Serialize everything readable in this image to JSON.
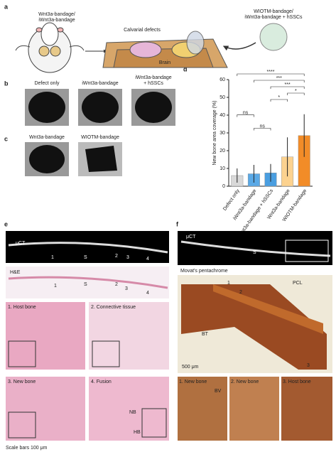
{
  "panels": {
    "a": "a",
    "b": "b",
    "c": "c",
    "d": "d",
    "e": "e",
    "f": "f"
  },
  "panel_a": {
    "mouse_label_1": "Wnt3a-bandage/",
    "mouse_label_2": "iWnt3a-bandage",
    "defects": "Calvarial defects",
    "brain": "Brain",
    "implant_label_1": "WIOTM-bandage/",
    "implant_label_2": "iWnt3a-bandage + hSSCs"
  },
  "panel_b": {
    "labels": [
      "Defect only",
      "iWnt3a-bandage",
      "iWnt3a-bandage",
      "+ hSSCs"
    ]
  },
  "panel_c": {
    "labels": [
      "Wnt3a-bandage",
      "WIOTM-bandage"
    ]
  },
  "panel_d": {
    "chart_data": {
      "type": "bar",
      "ylabel": "New bone area coverage (%)",
      "categories": [
        "Defect only",
        "iWnt3a-bandage",
        "iWnt3a-bandage + hSSCs",
        "Wnt3a-bandage",
        "WIOTM-bandage"
      ],
      "values": [
        6,
        7,
        7.5,
        16.5,
        28.5
      ],
      "errors": [
        4,
        5,
        5,
        11,
        12
      ],
      "colors": [
        "#d9d9d9",
        "#5aa9e6",
        "#4a9ee0",
        "#fcd28f",
        "#f28c28"
      ],
      "ylim": [
        0,
        60
      ],
      "yticks": [
        0,
        10,
        20,
        30,
        40,
        50,
        60
      ],
      "significance": [
        "****",
        "***",
        "***",
        "*",
        "*",
        "ns",
        "ns"
      ]
    }
  },
  "panel_e": {
    "uct": "μCT",
    "he": "H&E",
    "markers": [
      "1",
      "S",
      "2",
      "3",
      "4"
    ],
    "he_markers": [
      "1",
      "S",
      "2",
      "3",
      "4"
    ],
    "images": [
      "1. Host bone",
      "2. Connective tissue",
      "3. New bone",
      "4. Fusion"
    ],
    "nb": "NB",
    "hb": "HB",
    "scale": "Scale bars 100 μm"
  },
  "panel_f": {
    "uct": "μCT",
    "s": "S",
    "stain": "Movat's pentachrome",
    "pcl": "PCL",
    "bt": "BT",
    "markers": [
      "1",
      "2",
      "3"
    ],
    "scale": "500 μm",
    "images": [
      "1. New bone",
      "2. New bone",
      "3. Host bone"
    ],
    "bv": "BV"
  }
}
